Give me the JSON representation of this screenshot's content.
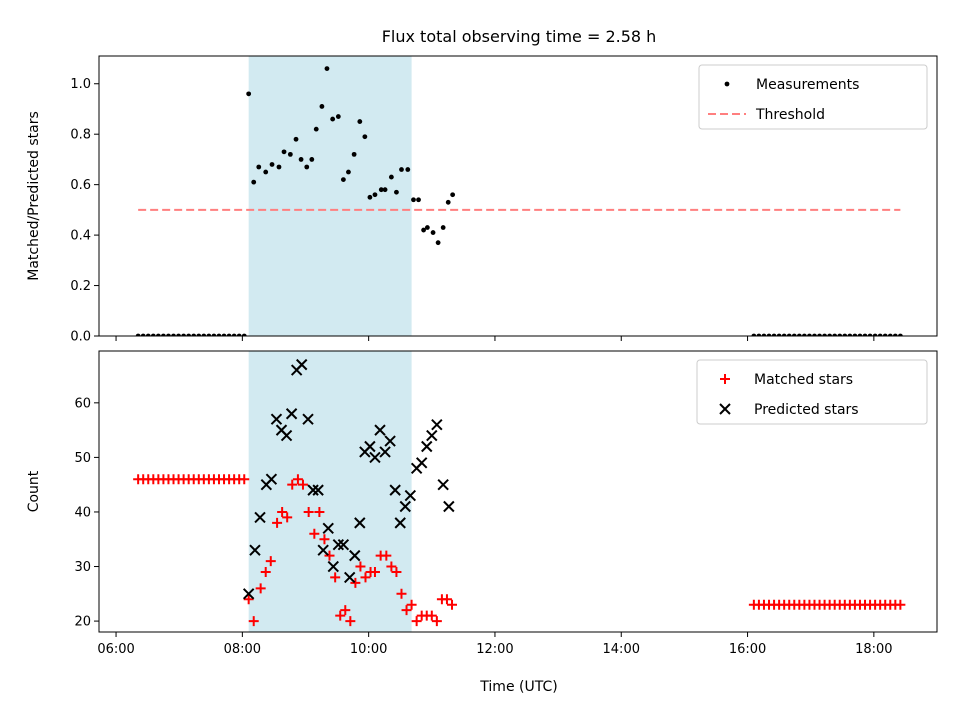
{
  "chart_data": {
    "title": "Flux total observing time = 2.58 h",
    "xlabel": "Time (UTC)",
    "x_unit": "hours UTC",
    "x_ticks": [
      {
        "value": 6,
        "label": "06:00"
      },
      {
        "value": 8,
        "label": "08:00"
      },
      {
        "value": 10,
        "label": "10:00"
      },
      {
        "value": 12,
        "label": "12:00"
      },
      {
        "value": 14,
        "label": "14:00"
      },
      {
        "value": 16,
        "label": "16:00"
      },
      {
        "value": 18,
        "label": "18:00"
      }
    ],
    "xlim": [
      5.73,
      19.0
    ],
    "shaded_span": {
      "x_start": 8.1,
      "x_end": 10.68,
      "color": "#add8e6"
    },
    "panels": [
      {
        "type": "scatter",
        "ylabel": "Matched/Predicted stars",
        "ylim": [
          0,
          1.11
        ],
        "y_ticks": [
          {
            "value": 0.0,
            "label": "0.0"
          },
          {
            "value": 0.2,
            "label": "0.2"
          },
          {
            "value": 0.4,
            "label": "0.4"
          },
          {
            "value": 0.6,
            "label": "0.6"
          },
          {
            "value": 0.8,
            "label": "0.8"
          },
          {
            "value": 1.0,
            "label": "1.0"
          }
        ],
        "legend": {
          "placement": "top-right"
        },
        "series": [
          {
            "name": "Measurements",
            "marker": "dot",
            "color": "#000000",
            "points": [
              [
                6.35,
                0
              ],
              [
                6.43,
                0
              ],
              [
                6.51,
                0
              ],
              [
                6.59,
                0
              ],
              [
                6.67,
                0
              ],
              [
                6.75,
                0
              ],
              [
                6.83,
                0
              ],
              [
                6.91,
                0
              ],
              [
                6.99,
                0
              ],
              [
                7.07,
                0
              ],
              [
                7.15,
                0
              ],
              [
                7.23,
                0
              ],
              [
                7.31,
                0
              ],
              [
                7.39,
                0
              ],
              [
                7.47,
                0
              ],
              [
                7.55,
                0
              ],
              [
                7.63,
                0
              ],
              [
                7.71,
                0
              ],
              [
                7.79,
                0
              ],
              [
                7.87,
                0
              ],
              [
                7.95,
                0
              ],
              [
                8.03,
                0
              ],
              [
                8.1,
                0.96
              ],
              [
                8.18,
                0.61
              ],
              [
                8.26,
                0.67
              ],
              [
                8.37,
                0.65
              ],
              [
                8.47,
                0.68
              ],
              [
                8.58,
                0.67
              ],
              [
                8.66,
                0.73
              ],
              [
                8.76,
                0.72
              ],
              [
                8.85,
                0.78
              ],
              [
                8.93,
                0.7
              ],
              [
                9.02,
                0.67
              ],
              [
                9.1,
                0.7
              ],
              [
                9.17,
                0.82
              ],
              [
                9.26,
                0.91
              ],
              [
                9.34,
                1.06
              ],
              [
                9.43,
                0.86
              ],
              [
                9.52,
                0.87
              ],
              [
                9.6,
                0.62
              ],
              [
                9.68,
                0.65
              ],
              [
                9.77,
                0.72
              ],
              [
                9.86,
                0.85
              ],
              [
                9.94,
                0.79
              ],
              [
                10.02,
                0.55
              ],
              [
                10.1,
                0.56
              ],
              [
                10.2,
                0.58
              ],
              [
                10.26,
                0.58
              ],
              [
                10.36,
                0.63
              ],
              [
                10.44,
                0.57
              ],
              [
                10.52,
                0.66
              ],
              [
                10.62,
                0.66
              ],
              [
                10.71,
                0.54
              ],
              [
                10.79,
                0.54
              ],
              [
                10.87,
                0.42
              ],
              [
                10.93,
                0.43
              ],
              [
                11.02,
                0.41
              ],
              [
                11.1,
                0.37
              ],
              [
                11.18,
                0.43
              ],
              [
                11.26,
                0.53
              ],
              [
                11.33,
                0.56
              ],
              [
                16.1,
                0
              ],
              [
                16.18,
                0
              ],
              [
                16.26,
                0
              ],
              [
                16.34,
                0
              ],
              [
                16.42,
                0
              ],
              [
                16.5,
                0
              ],
              [
                16.58,
                0
              ],
              [
                16.66,
                0
              ],
              [
                16.74,
                0
              ],
              [
                16.82,
                0
              ],
              [
                16.9,
                0
              ],
              [
                16.98,
                0
              ],
              [
                17.06,
                0
              ],
              [
                17.14,
                0
              ],
              [
                17.22,
                0
              ],
              [
                17.3,
                0
              ],
              [
                17.38,
                0
              ],
              [
                17.46,
                0
              ],
              [
                17.54,
                0
              ],
              [
                17.62,
                0
              ],
              [
                17.7,
                0
              ],
              [
                17.78,
                0
              ],
              [
                17.86,
                0
              ],
              [
                17.94,
                0
              ],
              [
                18.02,
                0
              ],
              [
                18.1,
                0
              ],
              [
                18.18,
                0
              ],
              [
                18.26,
                0
              ],
              [
                18.34,
                0
              ],
              [
                18.42,
                0
              ]
            ]
          },
          {
            "name": "Threshold",
            "marker": "dashed-line",
            "color": "#ff7f7f",
            "points": [
              [
                6.35,
                0.5
              ],
              [
                18.42,
                0.5
              ]
            ]
          }
        ]
      },
      {
        "type": "scatter",
        "ylabel": "Count",
        "ylim": [
          18,
          69.5
        ],
        "y_ticks": [
          {
            "value": 20,
            "label": "20"
          },
          {
            "value": 30,
            "label": "30"
          },
          {
            "value": 40,
            "label": "40"
          },
          {
            "value": 50,
            "label": "50"
          },
          {
            "value": 60,
            "label": "60"
          }
        ],
        "legend": {
          "placement": "top-right"
        },
        "series": [
          {
            "name": "Matched stars",
            "marker": "plus",
            "color": "#ff0000",
            "points": [
              [
                6.35,
                46
              ],
              [
                6.43,
                46
              ],
              [
                6.51,
                46
              ],
              [
                6.59,
                46
              ],
              [
                6.67,
                46
              ],
              [
                6.75,
                46
              ],
              [
                6.83,
                46
              ],
              [
                6.91,
                46
              ],
              [
                6.99,
                46
              ],
              [
                7.07,
                46
              ],
              [
                7.15,
                46
              ],
              [
                7.23,
                46
              ],
              [
                7.31,
                46
              ],
              [
                7.39,
                46
              ],
              [
                7.47,
                46
              ],
              [
                7.55,
                46
              ],
              [
                7.63,
                46
              ],
              [
                7.71,
                46
              ],
              [
                7.79,
                46
              ],
              [
                7.87,
                46
              ],
              [
                7.95,
                46
              ],
              [
                8.03,
                46
              ],
              [
                8.1,
                24
              ],
              [
                8.18,
                20
              ],
              [
                8.29,
                26
              ],
              [
                8.37,
                29
              ],
              [
                8.45,
                31
              ],
              [
                8.55,
                38
              ],
              [
                8.63,
                40
              ],
              [
                8.71,
                39
              ],
              [
                8.79,
                45
              ],
              [
                8.88,
                46
              ],
              [
                8.96,
                45
              ],
              [
                9.05,
                40
              ],
              [
                9.14,
                36
              ],
              [
                9.22,
                40
              ],
              [
                9.3,
                35
              ],
              [
                9.38,
                32
              ],
              [
                9.47,
                28
              ],
              [
                9.55,
                21
              ],
              [
                9.63,
                22
              ],
              [
                9.71,
                20
              ],
              [
                9.79,
                27
              ],
              [
                9.87,
                30
              ],
              [
                9.95,
                28
              ],
              [
                10.03,
                29
              ],
              [
                10.1,
                29
              ],
              [
                10.19,
                32
              ],
              [
                10.28,
                32
              ],
              [
                10.36,
                30
              ],
              [
                10.44,
                29
              ],
              [
                10.52,
                25
              ],
              [
                10.6,
                22
              ],
              [
                10.68,
                23
              ],
              [
                10.76,
                20
              ],
              [
                10.84,
                21
              ],
              [
                10.92,
                21
              ],
              [
                11.0,
                21
              ],
              [
                11.08,
                20
              ],
              [
                11.16,
                24
              ],
              [
                11.24,
                24
              ],
              [
                11.32,
                23
              ],
              [
                16.1,
                23
              ],
              [
                16.18,
                23
              ],
              [
                16.26,
                23
              ],
              [
                16.34,
                23
              ],
              [
                16.42,
                23
              ],
              [
                16.5,
                23
              ],
              [
                16.58,
                23
              ],
              [
                16.66,
                23
              ],
              [
                16.74,
                23
              ],
              [
                16.82,
                23
              ],
              [
                16.9,
                23
              ],
              [
                16.98,
                23
              ],
              [
                17.06,
                23
              ],
              [
                17.14,
                23
              ],
              [
                17.22,
                23
              ],
              [
                17.3,
                23
              ],
              [
                17.38,
                23
              ],
              [
                17.46,
                23
              ],
              [
                17.54,
                23
              ],
              [
                17.62,
                23
              ],
              [
                17.7,
                23
              ],
              [
                17.78,
                23
              ],
              [
                17.86,
                23
              ],
              [
                17.94,
                23
              ],
              [
                18.02,
                23
              ],
              [
                18.1,
                23
              ],
              [
                18.18,
                23
              ],
              [
                18.26,
                23
              ],
              [
                18.34,
                23
              ],
              [
                18.42,
                23
              ]
            ]
          },
          {
            "name": "Predicted stars",
            "marker": "x",
            "color": "#000000",
            "points": [
              [
                8.1,
                25
              ],
              [
                8.2,
                33
              ],
              [
                8.28,
                39
              ],
              [
                8.38,
                45
              ],
              [
                8.46,
                46
              ],
              [
                8.54,
                57
              ],
              [
                8.62,
                55
              ],
              [
                8.7,
                54
              ],
              [
                8.78,
                58
              ],
              [
                8.86,
                66
              ],
              [
                8.94,
                67
              ],
              [
                9.04,
                57
              ],
              [
                9.12,
                44
              ],
              [
                9.2,
                44
              ],
              [
                9.28,
                33
              ],
              [
                9.36,
                37
              ],
              [
                9.44,
                30
              ],
              [
                9.52,
                34
              ],
              [
                9.6,
                34
              ],
              [
                9.7,
                28
              ],
              [
                9.78,
                32
              ],
              [
                9.86,
                38
              ],
              [
                9.94,
                51
              ],
              [
                10.02,
                52
              ],
              [
                10.1,
                50
              ],
              [
                10.18,
                55
              ],
              [
                10.26,
                51
              ],
              [
                10.34,
                53
              ],
              [
                10.42,
                44
              ],
              [
                10.5,
                38
              ],
              [
                10.58,
                41
              ],
              [
                10.66,
                43
              ],
              [
                10.76,
                48
              ],
              [
                10.84,
                49
              ],
              [
                10.92,
                52
              ],
              [
                11.0,
                54
              ],
              [
                11.08,
                56
              ],
              [
                11.18,
                45
              ],
              [
                11.27,
                41
              ]
            ]
          }
        ]
      }
    ]
  }
}
